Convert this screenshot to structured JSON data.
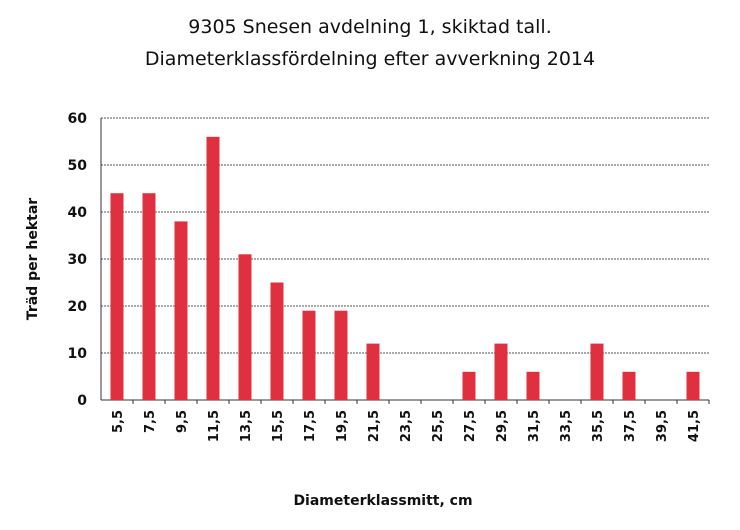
{
  "chart_data": {
    "type": "bar",
    "title": "9305 Snesen avdelning 1, skiktad tall.",
    "subtitle": "Diameterklassfördelning efter avverkning 2014",
    "xlabel": "Diameterklassmitt, cm",
    "ylabel": "Träd per hektar",
    "ylim": [
      0,
      60
    ],
    "yticks": [
      "0",
      "10",
      "20",
      "30",
      "40",
      "50",
      "60"
    ],
    "grid": true,
    "bar_color": "#e03040",
    "categories": [
      "5,5",
      "7,5",
      "9,5",
      "11,5",
      "13,5",
      "15,5",
      "17,5",
      "19,5",
      "21,5",
      "23,5",
      "25,5",
      "27,5",
      "29,5",
      "31,5",
      "33,5",
      "35,5",
      "37,5",
      "39,5",
      "41,5"
    ],
    "values": [
      44,
      44,
      38,
      56,
      31,
      25,
      19,
      19,
      12,
      0,
      0,
      6,
      12,
      6,
      0,
      12,
      6,
      0,
      6
    ]
  }
}
